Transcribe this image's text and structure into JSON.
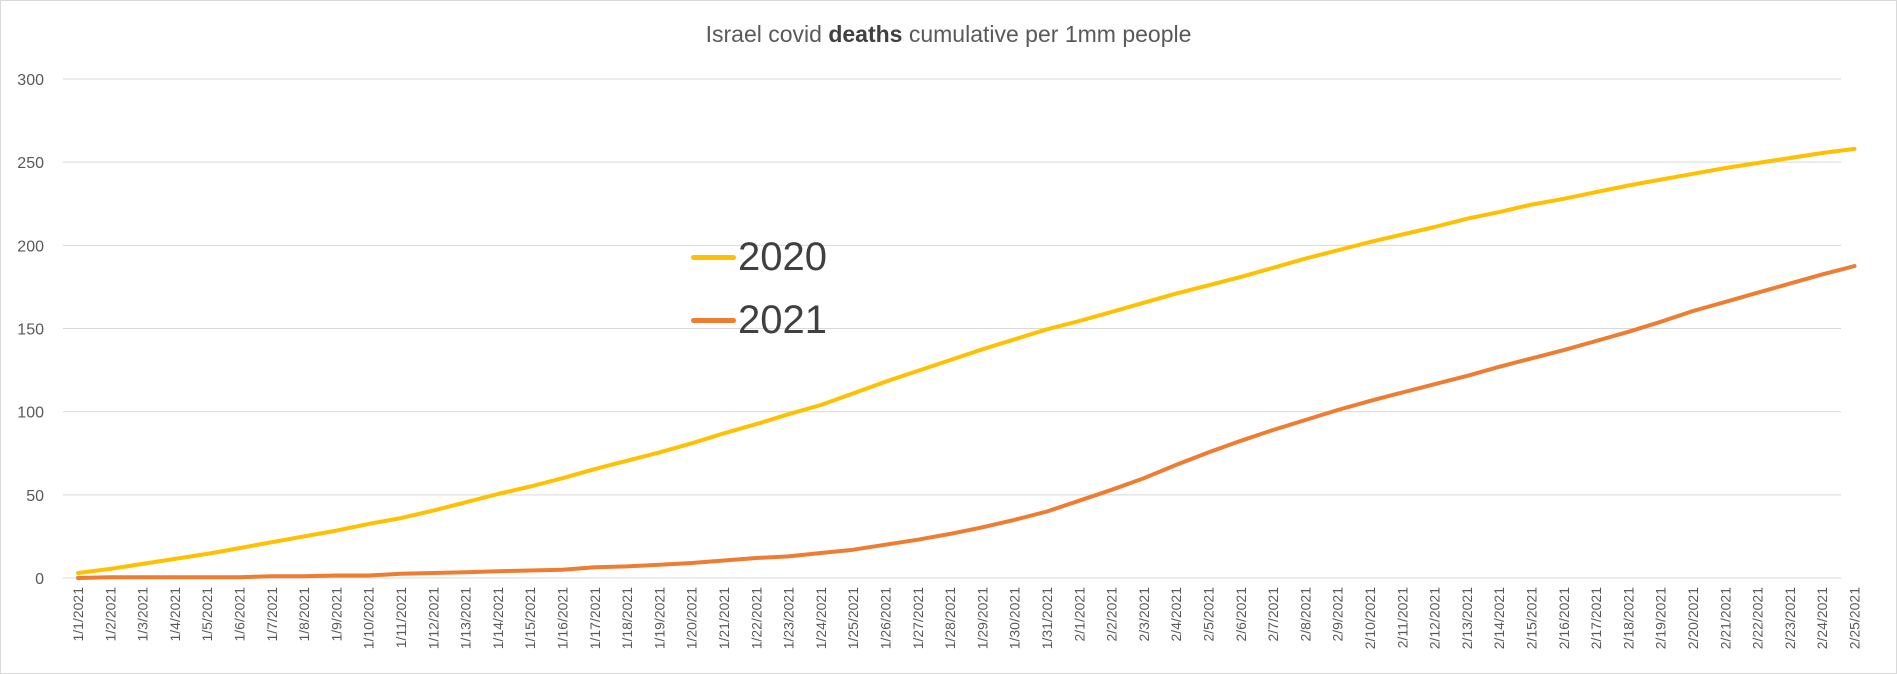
{
  "chart_data": {
    "type": "line",
    "title": {
      "prefix": "Israel covid ",
      "bold": "deaths",
      "suffix": " cumulative per 1mm people"
    },
    "xlabel": "",
    "ylabel": "",
    "ylim": [
      0,
      300
    ],
    "yticks": [
      "0",
      "50",
      "100",
      "150",
      "200",
      "250",
      "300"
    ],
    "grid": true,
    "legend_position": "center-left",
    "categories": [
      "1/1/2021",
      "1/2/2021",
      "1/3/2021",
      "1/4/2021",
      "1/5/2021",
      "1/6/2021",
      "1/7/2021",
      "1/8/2021",
      "1/9/2021",
      "1/10/2021",
      "1/11/2021",
      "1/12/2021",
      "1/13/2021",
      "1/14/2021",
      "1/15/2021",
      "1/16/2021",
      "1/17/2021",
      "1/18/2021",
      "1/19/2021",
      "1/20/2021",
      "1/21/2021",
      "1/22/2021",
      "1/23/2021",
      "1/24/2021",
      "1/25/2021",
      "1/26/2021",
      "1/27/2021",
      "1/28/2021",
      "1/29/2021",
      "1/30/2021",
      "1/31/2021",
      "2/1/2021",
      "2/2/2021",
      "2/3/2021",
      "2/4/2021",
      "2/5/2021",
      "2/6/2021",
      "2/7/2021",
      "2/8/2021",
      "2/9/2021",
      "2/10/2021",
      "2/11/2021",
      "2/12/2021",
      "2/13/2021",
      "2/14/2021",
      "2/15/2021",
      "2/16/2021",
      "2/17/2021",
      "2/18/2021",
      "2/19/2021",
      "2/20/2021",
      "2/21/2021",
      "2/22/2021",
      "2/23/2021",
      "2/24/2021",
      "2/25/2021"
    ],
    "series": [
      {
        "name": "2020",
        "color": "#ffc000",
        "values": [
          3,
          5.5,
          8.5,
          11.5,
          14.5,
          18,
          21.5,
          25,
          28.5,
          32.5,
          36,
          40.5,
          45.5,
          50.5,
          55,
          60,
          65.5,
          70.5,
          75.5,
          81,
          87,
          92.5,
          98.5,
          104,
          111,
          118,
          124.5,
          131,
          137.5,
          143.5,
          149.5,
          154.5,
          160,
          165.5,
          171,
          176,
          181,
          186.5,
          192,
          197,
          202,
          206.5,
          211,
          216,
          220,
          224.5,
          228,
          232,
          236,
          239.5,
          243,
          246.5,
          249.5,
          252.5,
          255.5,
          258
        ]
      },
      {
        "name": "2021",
        "color": "#ed7d31",
        "values": [
          0,
          0.5,
          0.5,
          0.5,
          0.5,
          0.5,
          1,
          1,
          1.5,
          1.5,
          2.5,
          3,
          3.5,
          4,
          4.5,
          5,
          6.5,
          7,
          8,
          9,
          10.5,
          12,
          13,
          15,
          17,
          20,
          23,
          26.5,
          30.5,
          35,
          40,
          46.5,
          53,
          60,
          68,
          75.5,
          82.5,
          89,
          95,
          101,
          106.5,
          111.5,
          116.5,
          121.5,
          127,
          132,
          137,
          142.5,
          148,
          154,
          160.5,
          166,
          171.5,
          177,
          182.5,
          187.5
        ]
      }
    ]
  }
}
